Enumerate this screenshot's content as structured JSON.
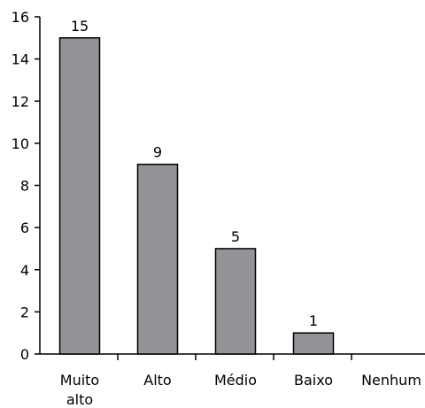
{
  "chart_data": {
    "type": "bar",
    "categories": [
      [
        "Muito",
        "alto"
      ],
      [
        "Alto"
      ],
      [
        "Médio"
      ],
      [
        "Baixo"
      ],
      [
        "Nenhum"
      ]
    ],
    "values": [
      15,
      9,
      5,
      1,
      0
    ],
    "data_labels": [
      "15",
      "9",
      "5",
      "1",
      ""
    ],
    "ylim": [
      0,
      16
    ],
    "yticks": [
      0,
      2,
      4,
      6,
      8,
      10,
      12,
      14,
      16
    ],
    "ytick_labels": [
      "0",
      "2",
      "4",
      "6",
      "8",
      "10",
      "12",
      "14",
      "16"
    ],
    "title": "",
    "xlabel": "",
    "ylabel": "",
    "grid": false,
    "legend": "none",
    "bar_color": "#939498",
    "bar_edge_color": "#000000"
  }
}
